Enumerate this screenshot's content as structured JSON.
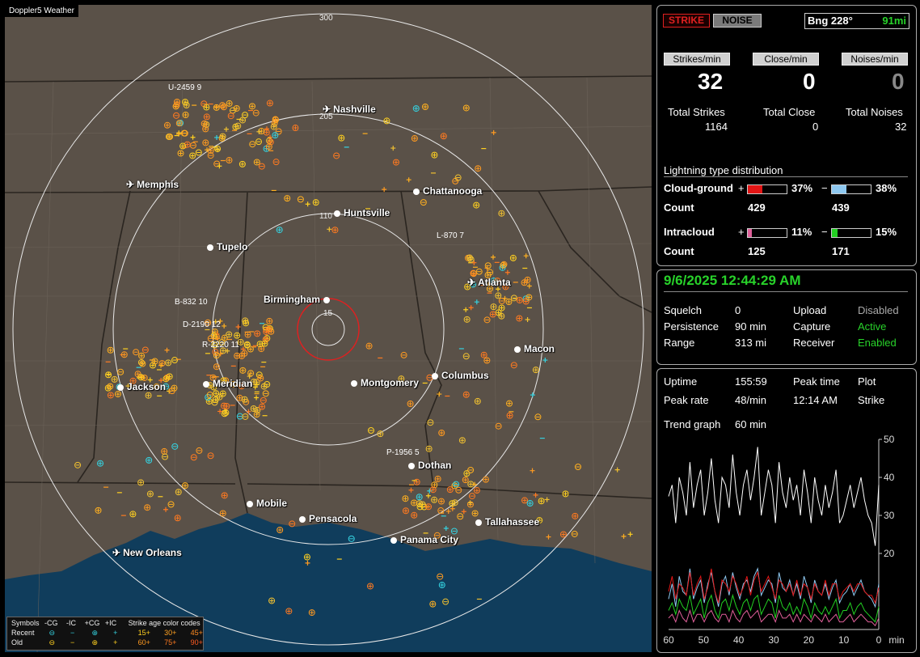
{
  "map": {
    "title": "Doppler5 Weather",
    "ring_labels": [
      "300",
      "205",
      "110",
      "15"
    ],
    "cities": [
      {
        "name": "Nashville",
        "icon": "airport-icon"
      },
      {
        "name": "Memphis",
        "icon": "airport-icon"
      },
      {
        "name": "Chattanooga",
        "icon": "city-dot-icon"
      },
      {
        "name": "Huntsville",
        "icon": "city-dot-icon"
      },
      {
        "name": "Tupelo",
        "icon": "city-dot-icon"
      },
      {
        "name": "Atlanta",
        "icon": "airport-icon"
      },
      {
        "name": "Birmingham",
        "icon": "city-dot-icon"
      },
      {
        "name": "Macon",
        "icon": "city-dot-icon"
      },
      {
        "name": "Jackson",
        "icon": "airport-icon"
      },
      {
        "name": "Meridian",
        "icon": "city-dot-icon"
      },
      {
        "name": "Montgomery",
        "icon": "city-dot-icon"
      },
      {
        "name": "Columbus",
        "icon": "city-dot-icon"
      },
      {
        "name": "Dothan",
        "icon": "city-dot-icon"
      },
      {
        "name": "Mobile",
        "icon": "city-dot-icon"
      },
      {
        "name": "Pensacola",
        "icon": "city-dot-icon"
      },
      {
        "name": "Tallahassee",
        "icon": "city-dot-icon"
      },
      {
        "name": "Panama City",
        "icon": "city-dot-icon"
      },
      {
        "name": "New Orleans",
        "icon": "airport-icon"
      }
    ],
    "sensors": [
      "U-2459 9",
      "L-870 7",
      "B-832 10",
      "D-2190 12",
      "R-2220 11",
      "P-1956 5"
    ],
    "legend": {
      "symbols_label": "Symbols",
      "headers": [
        "-CG",
        "-IC",
        "+CG",
        "+IC"
      ],
      "age_title": "Strike age color codes",
      "recent_label": "Recent",
      "old_label": "Old",
      "recent_ages": [
        "15+",
        "30+",
        "45+"
      ],
      "old_ages": [
        "60+",
        "75+",
        "90+"
      ]
    }
  },
  "top": {
    "strike_btn": "STRIKE",
    "noise_btn": "NOISE",
    "bearing": "Bng 228°",
    "distance": "91mi"
  },
  "rates": {
    "strikes_label": "Strikes/min",
    "close_label": "Close/min",
    "noises_label": "Noises/min",
    "strikes_value": "32",
    "close_value": "0",
    "noises_value": "0"
  },
  "totals": {
    "strikes_label": "Total Strikes",
    "close_label": "Total Close",
    "noises_label": "Total Noises",
    "strikes": "1164",
    "close": "0",
    "noises": "32"
  },
  "distribution": {
    "title": "Lightning type distribution",
    "cg_label": "Cloud-ground",
    "ic_label": "Intracloud",
    "count_label": "Count",
    "plus": "+",
    "minus": "−",
    "cg_pos_pct": "37%",
    "cg_neg_pct": "38%",
    "ic_pos_pct": "11%",
    "ic_neg_pct": "15%",
    "cg_pos_count": "429",
    "cg_neg_count": "439",
    "ic_pos_count": "125",
    "ic_neg_count": "171",
    "colors": {
      "cg_pos": "#e21515",
      "cg_neg": "#8ec8f0",
      "ic_pos": "#e0609a",
      "ic_neg": "#22d022"
    },
    "fractions": {
      "cg_pos": 0.37,
      "cg_neg": 0.38,
      "ic_pos": 0.11,
      "ic_neg": 0.15
    }
  },
  "status": {
    "datetime": "9/6/2025 12:44:29 AM",
    "squelch_label": "Squelch",
    "squelch": "0",
    "persistence_label": "Persistence",
    "persistence": "90 min",
    "range_label": "Range",
    "range": "313 mi",
    "upload_label": "Upload",
    "upload": "Disabled",
    "capture_label": "Capture",
    "capture": "Active",
    "receiver_label": "Receiver",
    "receiver": "Enabled"
  },
  "stats": {
    "uptime_label": "Uptime",
    "uptime": "155:59",
    "peak_time_label": "Peak time",
    "peak_time": "12:14 AM",
    "plot_label": "Plot",
    "plot": "Strike",
    "peak_rate_label": "Peak rate",
    "peak_rate": "48/min",
    "trend_label": "Trend graph",
    "trend_window": "60 min"
  },
  "chart_data": {
    "type": "line",
    "title": "",
    "xlabel": "min",
    "ylabel": "",
    "x_ticks": [
      "60",
      "50",
      "40",
      "30",
      "20",
      "10",
      "0"
    ],
    "y_ticks": [
      "50",
      "40",
      "30",
      "20"
    ],
    "xlim": [
      60,
      0
    ],
    "ylim": [
      0,
      50
    ],
    "colors": {
      "total": "#ffffff",
      "cg_neg": "#8ec8f0",
      "cg_pos": "#e21515",
      "ic_neg": "#22d022",
      "ic_pos": "#e0609a"
    },
    "series": [
      {
        "values": [
          35,
          38,
          28,
          40,
          36,
          30,
          44,
          32,
          38,
          42,
          30,
          36,
          45,
          34,
          28,
          40,
          38,
          32,
          46,
          36,
          30,
          38,
          42,
          34,
          40,
          48,
          30,
          36,
          42,
          38,
          28,
          44,
          36,
          32,
          40,
          34,
          38,
          30,
          42,
          36,
          28,
          40,
          34,
          30,
          38,
          32,
          36,
          42,
          28,
          30,
          34,
          38,
          32,
          36,
          40,
          34,
          30,
          28,
          22,
          38
        ]
      },
      {
        "values": [
          8,
          12,
          6,
          14,
          10,
          9,
          16,
          8,
          11,
          13,
          7,
          12,
          15,
          10,
          6,
          12,
          14,
          9,
          15,
          11,
          8,
          12,
          13,
          10,
          14,
          16,
          9,
          11,
          13,
          12,
          7,
          15,
          11,
          10,
          13,
          9,
          12,
          8,
          14,
          11,
          7,
          13,
          10,
          9,
          12,
          8,
          11,
          13,
          7,
          9,
          10,
          12,
          9,
          11,
          13,
          10,
          9,
          8,
          6,
          12
        ]
      },
      {
        "values": [
          10,
          14,
          8,
          12,
          11,
          9,
          15,
          9,
          12,
          14,
          8,
          11,
          16,
          10,
          7,
          13,
          12,
          10,
          14,
          12,
          9,
          11,
          14,
          9,
          13,
          15,
          10,
          12,
          14,
          11,
          8,
          13,
          12,
          10,
          12,
          9,
          13,
          9,
          12,
          11,
          8,
          12,
          10,
          9,
          13,
          9,
          12,
          12,
          8,
          10,
          11,
          12,
          10,
          12,
          12,
          10,
          9,
          9,
          7,
          11
        ]
      },
      {
        "values": [
          5,
          7,
          4,
          8,
          6,
          5,
          9,
          4,
          6,
          8,
          3,
          7,
          9,
          5,
          3,
          7,
          8,
          5,
          9,
          6,
          4,
          7,
          8,
          5,
          8,
          9,
          4,
          6,
          8,
          7,
          3,
          9,
          6,
          5,
          7,
          4,
          6,
          4,
          8,
          6,
          3,
          7,
          5,
          4,
          6,
          4,
          6,
          8,
          3,
          5,
          5,
          7,
          4,
          6,
          7,
          5,
          4,
          3,
          2,
          6
        ]
      },
      {
        "values": [
          3,
          4,
          2,
          5,
          3,
          2,
          5,
          2,
          4,
          4,
          2,
          4,
          5,
          3,
          2,
          4,
          4,
          2,
          5,
          3,
          2,
          4,
          5,
          3,
          4,
          5,
          2,
          3,
          4,
          4,
          2,
          5,
          3,
          3,
          4,
          2,
          4,
          2,
          4,
          3,
          2,
          4,
          3,
          2,
          4,
          2,
          3,
          4,
          2,
          2,
          3,
          4,
          2,
          3,
          4,
          3,
          2,
          2,
          1,
          3
        ]
      }
    ]
  }
}
